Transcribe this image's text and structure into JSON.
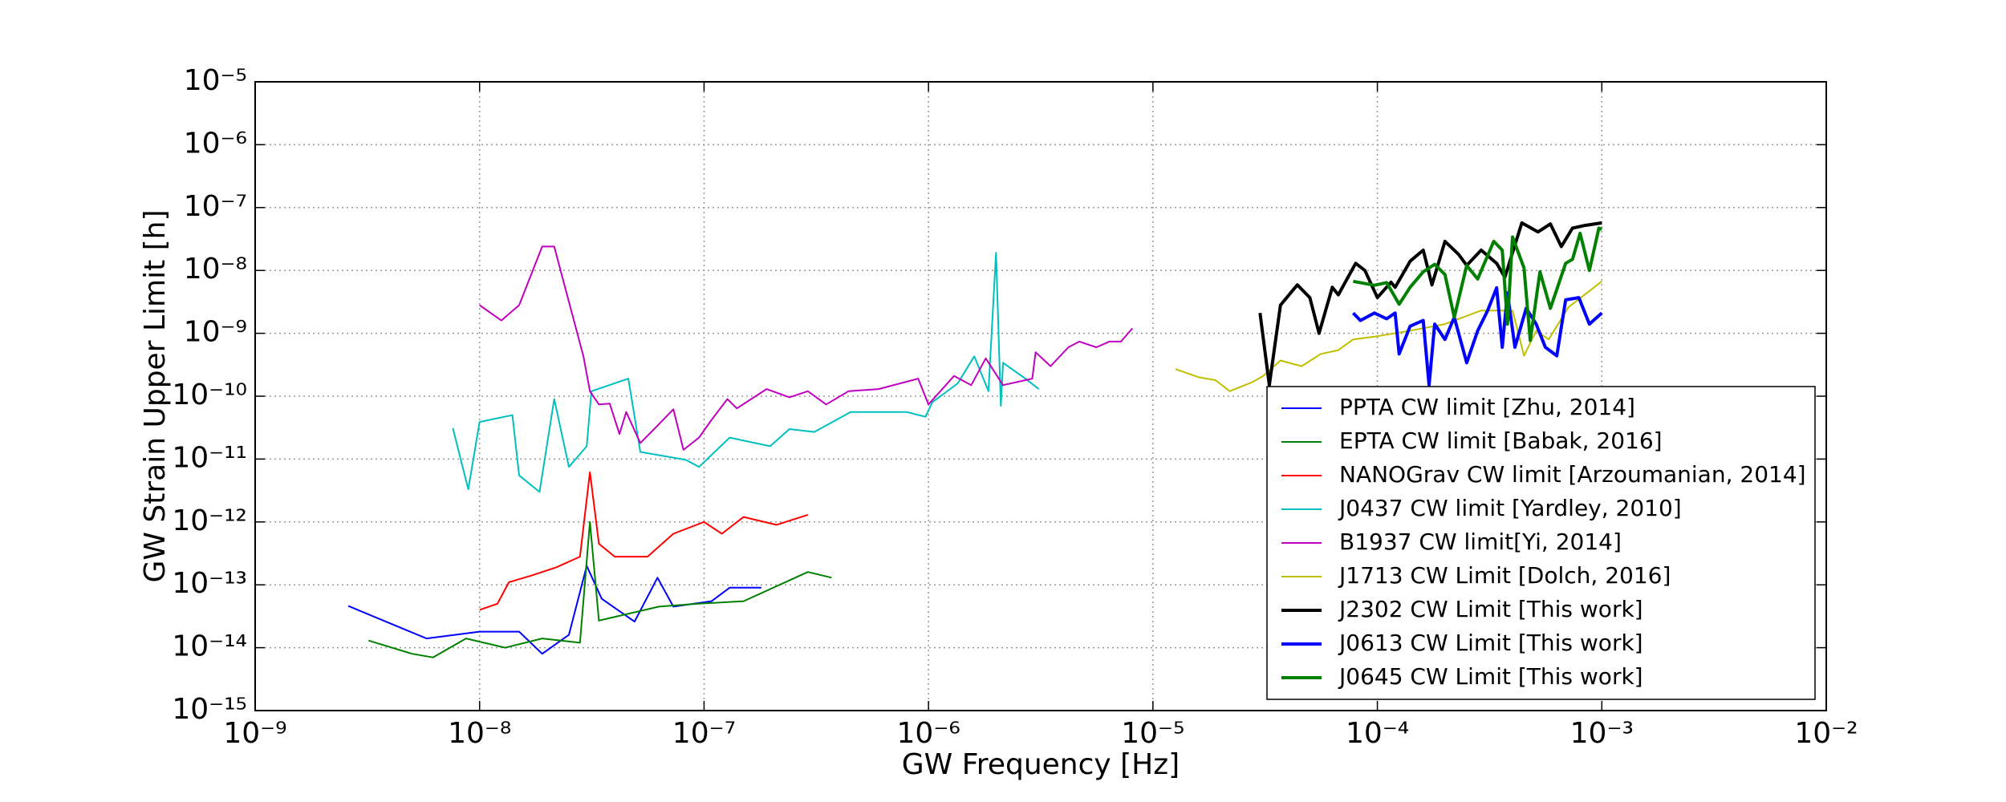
{
  "chart_data": {
    "type": "line",
    "x_label": "GW Frequency [Hz]",
    "y_label": "GW Strain Upper Limit [h]",
    "xscale": "log",
    "yscale": "log",
    "grid": true,
    "legend_loc": "lower right",
    "xlim": [
      1e-09,
      0.01
    ],
    "xticks": [
      {
        "value": 1e-09,
        "label": "10⁻⁹"
      },
      {
        "value": 1e-08,
        "label": "10⁻⁸"
      },
      {
        "value": 1e-07,
        "label": "10⁻⁷"
      },
      {
        "value": 1e-06,
        "label": "10⁻⁶"
      },
      {
        "value": 1e-05,
        "label": "10⁻⁵"
      },
      {
        "value": 0.0001,
        "label": "10⁻⁴"
      },
      {
        "value": 0.001,
        "label": "10⁻³"
      },
      {
        "value": 0.01,
        "label": "10⁻²"
      }
    ],
    "ylim": [
      1e-15,
      1e-05
    ],
    "yticks": [
      {
        "value": 1e-15,
        "label": "10⁻¹⁵"
      },
      {
        "value": 1e-14,
        "label": "10⁻¹⁴"
      },
      {
        "value": 1e-13,
        "label": "10⁻¹³"
      },
      {
        "value": 1e-12,
        "label": "10⁻¹²"
      },
      {
        "value": 1e-11,
        "label": "10⁻¹¹"
      },
      {
        "value": 1e-10,
        "label": "10⁻¹⁰"
      },
      {
        "value": 1e-09,
        "label": "10⁻⁹"
      },
      {
        "value": 1e-08,
        "label": "10⁻⁸"
      },
      {
        "value": 1e-07,
        "label": "10⁻⁷"
      },
      {
        "value": 1e-06,
        "label": "10⁻⁶"
      },
      {
        "value": 1e-05,
        "label": "10⁻⁵"
      }
    ],
    "series": [
      {
        "name": "PPTA CW limit [Zhu, 2014]",
        "color": "#0000ff",
        "line_width": 2,
        "x": [
          2.6e-09,
          5.8e-09,
          1e-08,
          1.5e-08,
          1.9e-08,
          2.5e-08,
          3e-08,
          3.5e-08,
          4.9e-08,
          6.2e-08,
          7.3e-08,
          1.08e-07,
          1.3e-07,
          1.8e-07
        ],
        "values": [
          4.6e-14,
          1.4e-14,
          1.8e-14,
          1.8e-14,
          8e-15,
          1.6e-14,
          2e-13,
          6e-14,
          2.6e-14,
          1.3e-13,
          4.5e-14,
          5.5e-14,
          9e-14,
          9e-14
        ]
      },
      {
        "name": "EPTA CW limit [Babak, 2016]",
        "color": "#008000",
        "line_width": 2,
        "x": [
          3.2e-09,
          5e-09,
          6.2e-09,
          8.7e-09,
          1.3e-08,
          1.9e-08,
          2.8e-08,
          3.1e-08,
          3.4e-08,
          4.5e-08,
          6.3e-08,
          9.4e-08,
          1.5e-07,
          2.9e-07,
          3.7e-07
        ],
        "values": [
          1.3e-14,
          8e-15,
          7e-15,
          1.4e-14,
          1e-14,
          1.4e-14,
          1.2e-14,
          1e-12,
          2.7e-14,
          3.4e-14,
          4.5e-14,
          5e-14,
          5.5e-14,
          1.6e-13,
          1.3e-13
        ]
      },
      {
        "name": "NANOGrav CW limit [Arzoumanian, 2014]",
        "color": "#ff0000",
        "line_width": 2,
        "x": [
          1e-08,
          1.2e-08,
          1.35e-08,
          1.7e-08,
          2.2e-08,
          2.8e-08,
          3.1e-08,
          3.4e-08,
          4e-08,
          5.6e-08,
          7.3e-08,
          1e-07,
          1.2e-07,
          1.5e-07,
          2.1e-07,
          2.9e-07
        ],
        "values": [
          4e-14,
          5e-14,
          1.1e-13,
          1.4e-13,
          1.9e-13,
          2.8e-13,
          6.2e-12,
          4.5e-13,
          2.8e-13,
          2.8e-13,
          6.5e-13,
          1e-12,
          6.5e-13,
          1.2e-12,
          9e-13,
          1.3e-12
        ]
      },
      {
        "name": "J0437 CW limit [Yardley, 2010]",
        "color": "#00bfbf",
        "line_width": 2,
        "x": [
          7.6e-09,
          8.9e-09,
          1e-08,
          1.4e-08,
          1.5e-08,
          1.85e-08,
          2.15e-08,
          2.5e-08,
          3e-08,
          3.15e-08,
          4.6e-08,
          5.2e-08,
          8.3e-08,
          9.5e-08,
          1.3e-07,
          1.97e-07,
          2.4e-07,
          3.1e-07,
          4.5e-07,
          8e-07,
          9.7e-07,
          1.04e-06,
          1.35e-06,
          1.6e-06,
          1.85e-06,
          2e-06,
          2.1e-06,
          2.15e-06,
          2.7e-06,
          3.1e-06
        ],
        "values": [
          3.1e-11,
          3.3e-12,
          3.9e-11,
          5e-11,
          5.5e-12,
          3e-12,
          9e-11,
          7.5e-12,
          1.6e-11,
          1.2e-10,
          1.9e-10,
          1.3e-11,
          9.7e-12,
          7.5e-12,
          2.2e-11,
          1.6e-11,
          3e-11,
          2.7e-11,
          5.6e-11,
          5.6e-11,
          4.7e-11,
          8e-11,
          1.6e-10,
          4.3e-10,
          1.2e-10,
          1.9e-08,
          7e-11,
          3.4e-10,
          1.9e-10,
          1.3e-10
        ]
      },
      {
        "name": "B1937 CW limit[Yi, 2014]",
        "color": "#bf00bf",
        "line_width": 2,
        "x": [
          1e-08,
          1.25e-08,
          1.5e-08,
          1.9e-08,
          2.15e-08,
          2.9e-08,
          3.1e-08,
          3.4e-08,
          3.8e-08,
          4.2e-08,
          4.5e-08,
          5.2e-08,
          6.1e-08,
          7.3e-08,
          8.1e-08,
          9.5e-08,
          1.08e-07,
          1.27e-07,
          1.4e-07,
          1.9e-07,
          2.4e-07,
          2.9e-07,
          3.5e-07,
          4.4e-07,
          6e-07,
          9e-07,
          1e-06,
          1.3e-06,
          1.55e-06,
          1.8e-06,
          2.15e-06,
          2.9e-06,
          3e-06,
          3.5e-06,
          4.2e-06,
          4.7e-06,
          5.6e-06,
          6.4e-06,
          7.2e-06,
          8.1e-06
        ],
        "values": [
          2.8e-09,
          1.6e-09,
          2.8e-09,
          2.4e-08,
          2.4e-08,
          4.3e-10,
          1.2e-10,
          7.4e-11,
          7.6e-11,
          2.5e-11,
          5.6e-11,
          1.8e-11,
          3.2e-11,
          6.2e-11,
          1.4e-11,
          2.2e-11,
          4.2e-11,
          9e-11,
          6.4e-11,
          1.3e-10,
          9.6e-11,
          1.2e-10,
          7.4e-11,
          1.2e-10,
          1.3e-10,
          1.9e-10,
          7.4e-11,
          2.1e-10,
          1.5e-10,
          4e-10,
          1.5e-10,
          1.9e-10,
          5e-10,
          3e-10,
          6e-10,
          7.4e-10,
          6e-10,
          7.4e-10,
          7.4e-10,
          1.2e-09
        ]
      },
      {
        "name": "J1713 CW Limit [Dolch, 2016]",
        "color": "#bfbf00",
        "line_width": 2,
        "x": [
          1.26e-05,
          1.6e-05,
          1.9e-05,
          2.2e-05,
          2.8e-05,
          3.1e-05,
          3.7e-05,
          4.6e-05,
          5.6e-05,
          6.7e-05,
          7.8e-05,
          0.0001,
          0.00014,
          0.0002,
          0.00029,
          0.0004,
          0.00045,
          0.00051,
          0.00058,
          0.00071,
          0.001
        ],
        "values": [
          2.7e-10,
          2e-10,
          1.8e-10,
          1.2e-10,
          1.7e-10,
          2.1e-10,
          3.7e-10,
          3e-10,
          4.7e-10,
          5.4e-10,
          8e-10,
          9e-10,
          1.1e-09,
          1.4e-09,
          2.3e-09,
          2.3e-09,
          4.4e-10,
          1.1e-09,
          8e-10,
          2.6e-09,
          6.7e-09
        ]
      },
      {
        "name": "J2302 CW Limit [This work]",
        "color": "#000000",
        "line_width": 4,
        "x": [
          3e-05,
          3.3e-05,
          3.7e-05,
          4.4e-05,
          5e-05,
          5.5e-05,
          6.3e-05,
          6.7e-05,
          8e-05,
          8.8e-05,
          0.0001,
          0.000115,
          0.00012,
          0.00014,
          0.00016,
          0.000175,
          0.0002,
          0.00023,
          0.00025,
          0.00029,
          0.00034,
          0.00037,
          0.00044,
          0.00052,
          0.00059,
          0.00066,
          0.00074,
          0.00084,
          0.001
        ],
        "values": [
          2.1e-09,
          1.5e-10,
          2.8e-09,
          5.9e-09,
          3.7e-09,
          1e-09,
          5.4e-09,
          4.1e-09,
          1.3e-08,
          1e-08,
          3.7e-09,
          6.5e-09,
          5.4e-09,
          1.4e-08,
          2.1e-08,
          5.9e-09,
          2.9e-08,
          1.8e-08,
          1.2e-08,
          2.1e-08,
          1.3e-08,
          7.8e-09,
          5.7e-08,
          4.1e-08,
          5.5e-08,
          2.4e-08,
          4.7e-08,
          5.2e-08,
          5.7e-08
        ]
      },
      {
        "name": "J0613 CW Limit [This work]",
        "color": "#0000ff",
        "line_width": 4,
        "x": [
          7.8e-05,
          8.4e-05,
          9.7e-05,
          0.00011,
          0.00012,
          0.000125,
          0.00014,
          0.00016,
          0.00017,
          0.00018,
          0.0002,
          0.00022,
          0.00025,
          0.00028,
          0.00031,
          0.00034,
          0.00036,
          0.00038,
          0.00041,
          0.00046,
          0.00051,
          0.00056,
          0.00063,
          0.00069,
          0.00079,
          0.00088,
          0.001
        ],
        "values": [
          2.1e-09,
          1.6e-09,
          2.1e-09,
          1.7e-09,
          2.1e-09,
          4.7e-10,
          1.3e-09,
          1.6e-09,
          1.5e-10,
          1.4e-09,
          8e-10,
          1.8e-09,
          3.4e-10,
          1.1e-09,
          2.3e-09,
          5.3e-09,
          6e-10,
          4.4e-09,
          6e-10,
          2.5e-09,
          1.4e-09,
          6e-10,
          4.4e-10,
          3.4e-09,
          3.7e-09,
          1.4e-09,
          2.1e-09
        ]
      },
      {
        "name": "J0645 CW Limit [This work]",
        "color": "#008000",
        "line_width": 4,
        "x": [
          7.8e-05,
          9.7e-05,
          0.00011,
          0.000125,
          0.00014,
          0.00016,
          0.00018,
          0.0002,
          0.00022,
          0.00025,
          0.00028,
          0.00033,
          0.00036,
          0.00038,
          0.0004,
          0.00045,
          0.00048,
          0.00053,
          0.00059,
          0.00069,
          0.00074,
          0.0008,
          0.00088,
          0.00097,
          0.001
        ],
        "values": [
          6.7e-09,
          5.8e-09,
          6.4e-09,
          2.9e-09,
          5.4e-09,
          9.5e-09,
          1.25e-08,
          8.6e-09,
          1.8e-09,
          1.2e-08,
          7.3e-09,
          2.9e-08,
          2.1e-08,
          1.4e-09,
          3.4e-08,
          1.1e-08,
          7.7e-10,
          9.5e-09,
          2.5e-09,
          1.3e-08,
          1.5e-08,
          3.9e-08,
          1e-08,
          4.7e-08,
          4.5e-08
        ]
      }
    ]
  }
}
